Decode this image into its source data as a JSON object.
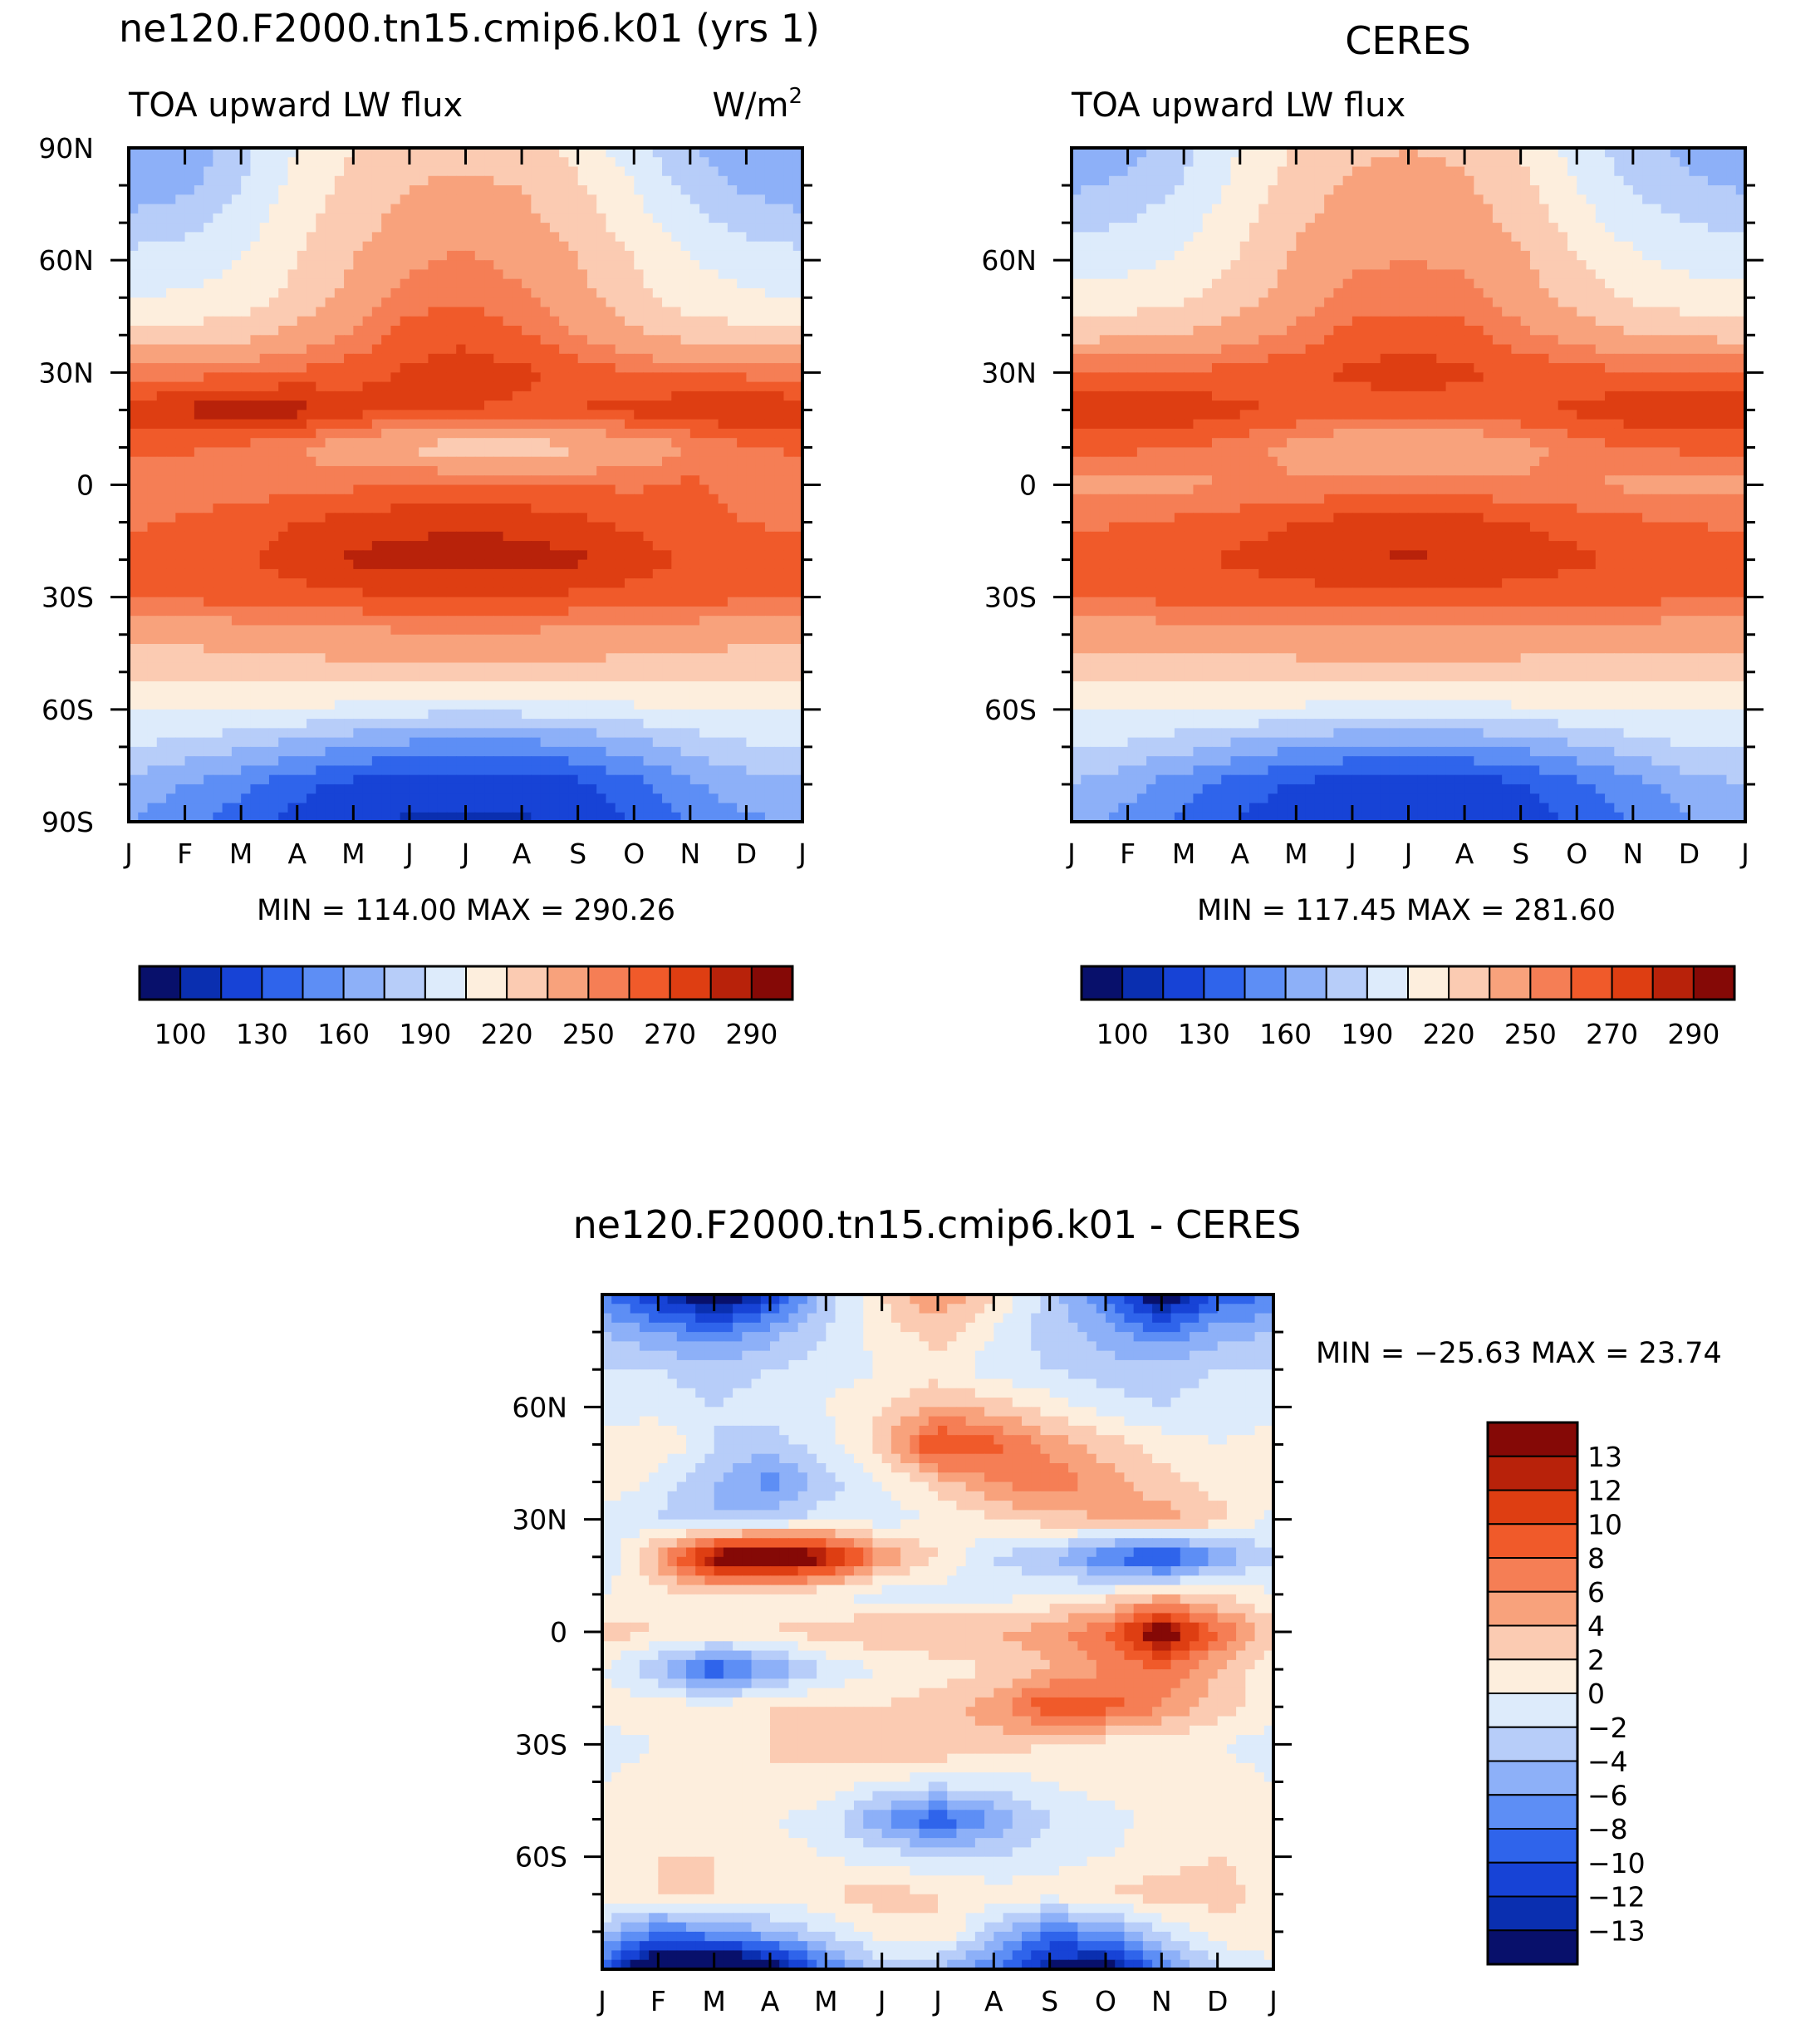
{
  "panels": [
    {
      "id": "model",
      "title": "ne120.F2000.tn15.cmip6.k01 (yrs 1)",
      "left_label": "TOA upward LW flux",
      "right_label": "W/m",
      "right_label_sup": "2",
      "minmax": "MIN = 114.00 MAX = 290.26",
      "y_ticks": [
        "90N",
        "60N",
        "30N",
        "0",
        "30S",
        "60S",
        "90S"
      ],
      "x_ticks": [
        "J",
        "F",
        "M",
        "A",
        "M",
        "J",
        "J",
        "A",
        "S",
        "O",
        "N",
        "D",
        "J"
      ]
    },
    {
      "id": "obs",
      "title": "CERES",
      "left_label": "TOA upward LW flux",
      "minmax": "MIN = 117.45 MAX = 281.60",
      "y_ticks": [
        "60N",
        "30N",
        "0",
        "30S",
        "60S"
      ],
      "x_ticks": [
        "J",
        "F",
        "M",
        "A",
        "M",
        "J",
        "J",
        "A",
        "S",
        "O",
        "N",
        "D",
        "J"
      ]
    },
    {
      "id": "diff",
      "title": "ne120.F2000.tn15.cmip6.k01 - CERES",
      "minmax": "MIN = −25.63 MAX =   23.74",
      "y_ticks": [
        "60N",
        "30N",
        "0",
        "30S",
        "60S"
      ],
      "x_ticks": [
        "J",
        "F",
        "M",
        "A",
        "M",
        "J",
        "J",
        "A",
        "S",
        "O",
        "N",
        "D",
        "J"
      ]
    }
  ],
  "colorbar_abs": {
    "labels": [
      "100",
      "130",
      "160",
      "190",
      "220",
      "250",
      "270",
      "290"
    ],
    "colors": [
      "#08106b",
      "#0a2fb0",
      "#1743d6",
      "#2f64eb",
      "#5d8ef5",
      "#8db0f8",
      "#b7cdf9",
      "#ddebfb",
      "#fdeedd",
      "#fbcbb2",
      "#f8a27c",
      "#f57e55",
      "#f05a2a",
      "#de3e12",
      "#b8220a",
      "#850906"
    ]
  },
  "colorbar_diff": {
    "labels": [
      "13",
      "12",
      "10",
      "8",
      "6",
      "4",
      "2",
      "0",
      "−2",
      "−4",
      "−6",
      "−8",
      "−10",
      "−12",
      "−13"
    ],
    "colors": [
      "#850906",
      "#b8220a",
      "#de3e12",
      "#f05a2a",
      "#f57e55",
      "#f8a27c",
      "#fbcbb2",
      "#fdeedd",
      "#ddebfb",
      "#b7cdf9",
      "#8db0f8",
      "#5d8ef5",
      "#2f64eb",
      "#1743d6",
      "#0a2fb0",
      "#08106b"
    ]
  },
  "chart_data": [
    {
      "type": "heatmap",
      "title": "ne120.F2000.tn15.cmip6.k01 (yrs 1)",
      "subtitle": "TOA upward LW flux",
      "units": "W/m2",
      "x": [
        "J",
        "F",
        "M",
        "A",
        "M",
        "J",
        "J",
        "A",
        "S",
        "O",
        "N",
        "D",
        "J"
      ],
      "y": [
        90,
        80,
        70,
        60,
        50,
        40,
        30,
        20,
        10,
        0,
        -10,
        -20,
        -30,
        -40,
        -50,
        -60,
        -70,
        -80,
        -90
      ],
      "ylim": [
        -90,
        90
      ],
      "min": 114.0,
      "max": 290.26,
      "levels": [
        100,
        115,
        130,
        145,
        160,
        175,
        190,
        205,
        220,
        235,
        250,
        260,
        270,
        280,
        290
      ],
      "values": [
        [
          160,
          162,
          185,
          205,
          220,
          228,
          230,
          228,
          215,
          195,
          175,
          165,
          160
        ],
        [
          165,
          170,
          190,
          210,
          225,
          235,
          238,
          234,
          222,
          205,
          185,
          172,
          165
        ],
        [
          180,
          185,
          198,
          215,
          230,
          240,
          245,
          240,
          228,
          212,
          195,
          185,
          180
        ],
        [
          195,
          197,
          205,
          220,
          235,
          248,
          252,
          246,
          235,
          220,
          205,
          198,
          195
        ],
        [
          205,
          207,
          212,
          225,
          240,
          255,
          258,
          252,
          240,
          225,
          212,
          207,
          205
        ],
        [
          225,
          226,
          230,
          240,
          252,
          265,
          268,
          262,
          250,
          238,
          230,
          226,
          225
        ],
        [
          255,
          256,
          258,
          262,
          266,
          272,
          274,
          272,
          266,
          260,
          258,
          257,
          255
        ],
        [
          276,
          282,
          288,
          284,
          275,
          272,
          270,
          268,
          270,
          274,
          278,
          282,
          276
        ],
        [
          262,
          262,
          258,
          250,
          240,
          232,
          228,
          228,
          232,
          240,
          250,
          258,
          262
        ],
        [
          252,
          252,
          254,
          256,
          258,
          262,
          262,
          262,
          260,
          258,
          262,
          256,
          252
        ],
        [
          258,
          262,
          266,
          270,
          274,
          276,
          278,
          276,
          272,
          268,
          264,
          260,
          258
        ],
        [
          264,
          266,
          268,
          275,
          282,
          285,
          286,
          285,
          282,
          275,
          268,
          265,
          264
        ],
        [
          262,
          262,
          264,
          266,
          268,
          270,
          270,
          270,
          268,
          266,
          264,
          262,
          262
        ],
        [
          240,
          240,
          242,
          244,
          246,
          248,
          248,
          248,
          246,
          244,
          242,
          240,
          240
        ],
        [
          225,
          225,
          226,
          228,
          230,
          232,
          233,
          232,
          230,
          228,
          226,
          225,
          225
        ],
        [
          205,
          205,
          206,
          204,
          200,
          196,
          194,
          195,
          198,
          202,
          205,
          206,
          205
        ],
        [
          190,
          185,
          178,
          168,
          160,
          155,
          152,
          153,
          158,
          168,
          180,
          188,
          190
        ],
        [
          170,
          160,
          148,
          135,
          125,
          120,
          118,
          118,
          125,
          140,
          158,
          168,
          170
        ],
        [
          160,
          150,
          138,
          125,
          116,
          114,
          114,
          114,
          118,
          130,
          148,
          158,
          160
        ]
      ]
    },
    {
      "type": "heatmap",
      "title": "CERES",
      "subtitle": "TOA upward LW flux",
      "x": [
        "J",
        "F",
        "M",
        "A",
        "M",
        "J",
        "J",
        "A",
        "S",
        "O",
        "N",
        "D",
        "J"
      ],
      "y": [
        90,
        80,
        70,
        60,
        50,
        40,
        30,
        20,
        10,
        0,
        -10,
        -20,
        -30,
        -40,
        -50,
        -60,
        -70,
        -80,
        -90
      ],
      "ylim": [
        -90,
        90
      ],
      "min": 117.45,
      "max": 281.6,
      "levels": [
        100,
        115,
        130,
        145,
        160,
        175,
        190,
        205,
        220,
        235,
        250,
        260,
        270,
        280,
        290
      ],
      "values": [
        [
          165,
          170,
          185,
          205,
          222,
          232,
          235,
          232,
          218,
          198,
          180,
          170,
          165
        ],
        [
          172,
          178,
          192,
          210,
          228,
          238,
          240,
          237,
          225,
          205,
          188,
          178,
          172
        ],
        [
          185,
          190,
          200,
          215,
          232,
          242,
          245,
          242,
          230,
          212,
          197,
          190,
          185
        ],
        [
          198,
          200,
          208,
          222,
          238,
          248,
          250,
          248,
          238,
          222,
          208,
          200,
          198
        ],
        [
          210,
          212,
          218,
          228,
          242,
          254,
          256,
          254,
          242,
          230,
          218,
          212,
          210
        ],
        [
          230,
          232,
          236,
          244,
          254,
          264,
          266,
          264,
          254,
          244,
          236,
          232,
          230
        ],
        [
          262,
          262,
          262,
          264,
          268,
          272,
          274,
          272,
          268,
          264,
          262,
          262,
          262
        ],
        [
          278,
          279,
          277,
          272,
          268,
          266,
          265,
          266,
          268,
          272,
          277,
          279,
          278
        ],
        [
          262,
          262,
          260,
          255,
          246,
          238,
          236,
          238,
          246,
          255,
          260,
          262,
          262
        ],
        [
          248,
          248,
          248,
          250,
          252,
          254,
          255,
          254,
          252,
          250,
          248,
          248,
          248
        ],
        [
          258,
          260,
          262,
          266,
          270,
          274,
          275,
          274,
          270,
          266,
          262,
          260,
          258
        ],
        [
          264,
          266,
          268,
          272,
          276,
          280,
          281,
          280,
          276,
          272,
          268,
          266,
          264
        ],
        [
          262,
          262,
          263,
          264,
          265,
          266,
          266,
          266,
          265,
          264,
          263,
          262,
          262
        ],
        [
          242,
          242,
          243,
          244,
          245,
          246,
          246,
          246,
          245,
          244,
          243,
          242,
          242
        ],
        [
          226,
          226,
          227,
          228,
          229,
          230,
          230,
          230,
          229,
          228,
          227,
          226,
          226
        ],
        [
          205,
          205,
          205,
          204,
          202,
          200,
          199,
          200,
          202,
          204,
          205,
          205,
          205
        ],
        [
          192,
          188,
          180,
          170,
          162,
          158,
          156,
          158,
          162,
          172,
          182,
          190,
          192
        ],
        [
          175,
          165,
          150,
          138,
          128,
          122,
          120,
          122,
          128,
          140,
          155,
          168,
          175
        ],
        [
          165,
          155,
          140,
          128,
          120,
          118,
          117,
          118,
          122,
          132,
          148,
          160,
          165
        ]
      ]
    },
    {
      "type": "heatmap",
      "title": "ne120.F2000.tn15.cmip6.k01 - CERES",
      "x": [
        "J",
        "F",
        "M",
        "A",
        "M",
        "J",
        "J",
        "A",
        "S",
        "O",
        "N",
        "D",
        "J"
      ],
      "y": [
        90,
        80,
        70,
        60,
        50,
        40,
        30,
        20,
        10,
        0,
        -10,
        -20,
        -30,
        -40,
        -50,
        -60,
        -70,
        -80,
        -90
      ],
      "ylim": [
        -90,
        90
      ],
      "min": -25.63,
      "max": 23.74,
      "levels": [
        -13,
        -12,
        -10,
        -8,
        -6,
        -4,
        -2,
        0,
        2,
        4,
        6,
        8,
        10,
        12,
        13
      ],
      "values": [
        [
          -8,
          -12,
          -16,
          -12,
          -3,
          2,
          6,
          2,
          -3,
          -8,
          -16,
          -10,
          -8
        ],
        [
          -4,
          -6,
          -8,
          -5,
          -2,
          1,
          3,
          0,
          -3,
          -5,
          -8,
          -5,
          -4
        ],
        [
          -2,
          -2,
          -3,
          -2,
          -1,
          0,
          1,
          -1,
          -2,
          -3,
          -3,
          -2,
          -2
        ],
        [
          -1,
          -1,
          -2,
          -1,
          0,
          2,
          4,
          3,
          1,
          -1,
          -2,
          -1,
          -1
        ],
        [
          1,
          2,
          -2,
          -3,
          -1,
          3,
          11,
          9,
          5,
          3,
          1,
          0,
          1
        ],
        [
          2,
          -1,
          -4,
          -7,
          -3,
          0,
          3,
          6,
          8,
          5,
          3,
          1,
          2
        ],
        [
          -1,
          -2,
          -4,
          -3,
          -1,
          -1,
          0,
          2,
          3,
          4,
          5,
          3,
          -1
        ],
        [
          -2,
          5,
          15,
          18,
          14,
          6,
          2,
          -2,
          -4,
          -8,
          -12,
          -6,
          -2
        ],
        [
          0,
          1,
          2,
          1,
          0,
          -1,
          -1,
          -1,
          0,
          1,
          3,
          2,
          0
        ],
        [
          3,
          2,
          2,
          2,
          3,
          4,
          4,
          4,
          5,
          8,
          16,
          8,
          3
        ],
        [
          0,
          -4,
          -10,
          -6,
          -2,
          0,
          1,
          2,
          4,
          6,
          8,
          4,
          0
        ],
        [
          1,
          1,
          1,
          2,
          2,
          2,
          3,
          5,
          10,
          9,
          6,
          3,
          1
        ],
        [
          -1,
          0,
          1,
          2,
          3,
          4,
          4,
          3,
          2,
          1,
          1,
          0,
          -1
        ],
        [
          0,
          1,
          2,
          2,
          1,
          0,
          -1,
          -1,
          0,
          1,
          1,
          1,
          0
        ],
        [
          1,
          2,
          1,
          0,
          -1,
          -6,
          -10,
          -6,
          -2,
          -1,
          1,
          2,
          1
        ],
        [
          1,
          2,
          2,
          1,
          0,
          -1,
          -2,
          -2,
          -1,
          0,
          1,
          2,
          1
        ],
        [
          1,
          2,
          2,
          1,
          2,
          3,
          2,
          1,
          1,
          2,
          3,
          3,
          1
        ],
        [
          -3,
          -8,
          -6,
          -4,
          -2,
          1,
          2,
          -3,
          -8,
          -6,
          -2,
          1,
          2
        ],
        [
          -10,
          -18,
          -20,
          -16,
          -8,
          -3,
          -4,
          -8,
          -14,
          -16,
          -8,
          -2,
          -1
        ]
      ]
    }
  ]
}
